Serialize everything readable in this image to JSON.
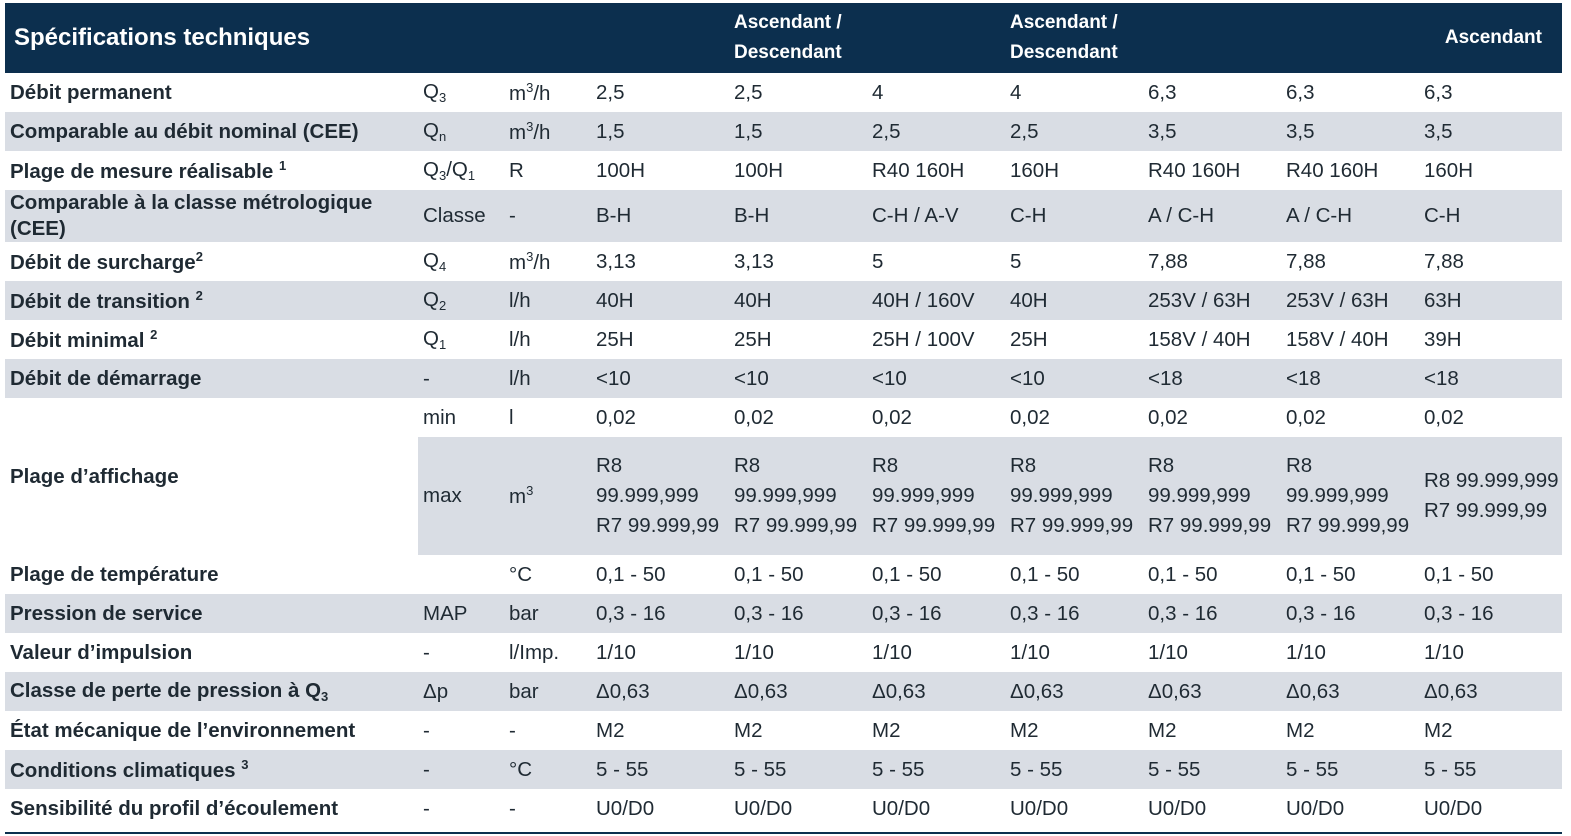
{
  "header": {
    "title": "Spécifications techniques",
    "cols": [
      "",
      "",
      "",
      "Ascendant / Descendant",
      "",
      "Ascendant / Descendant",
      "",
      "",
      "Ascendant"
    ]
  },
  "rows": [
    {
      "label": "Débit permanent",
      "symbol": "Q",
      "symbol_sub": "3",
      "unit": "m",
      "unit_sup": "3",
      "unit_tail": "/h",
      "values": [
        "2,5",
        "2,5",
        "4",
        "4",
        "6,3",
        "6,3",
        "6,3"
      ]
    },
    {
      "label": "Comparable au débit nominal (CEE)",
      "symbol": "Q",
      "symbol_sub": "n",
      "unit": "m",
      "unit_sup": "3",
      "unit_tail": "/h",
      "values": [
        "1,5",
        "1,5",
        "2,5",
        "2,5",
        "3,5",
        "3,5",
        "3,5"
      ]
    },
    {
      "label": "Plage de mesure réalisable",
      "label_sup": "1",
      "symbol": "Q",
      "symbol_sub": "3",
      "symbol_mid": "/Q",
      "symbol_sub2": "1",
      "unit": "R",
      "values": [
        "100H",
        "100H",
        "R40 160H",
        "160H",
        "R40 160H",
        "R40 160H",
        "160H"
      ]
    },
    {
      "label": "Comparable à la classe métrologique (CEE)",
      "symbol": "Classe",
      "unit": "-",
      "values": [
        "B-H",
        "B-H",
        "C-H / A-V",
        "C-H",
        "A / C-H",
        "A / C-H",
        "C-H"
      ]
    },
    {
      "label": "Débit de surcharge",
      "label_sup": "2",
      "symbol": "Q",
      "symbol_sub": "4",
      "unit": "m",
      "unit_sup": "3",
      "unit_tail": "/h",
      "values": [
        "3,13",
        "3,13",
        "5",
        "5",
        "7,88",
        "7,88",
        "7,88"
      ]
    },
    {
      "label": "Débit de transition",
      "label_sup": "2",
      "symbol": "Q",
      "symbol_sub": "2",
      "unit": "l/h",
      "values": [
        "40H",
        "40H",
        "40H / 160V",
        "40H",
        "253V / 63H",
        "253V / 63H",
        "63H"
      ]
    },
    {
      "label": "Débit minimal",
      "label_sup": "2",
      "symbol": "Q",
      "symbol_sub": "1",
      "unit": "l/h",
      "values": [
        "25H",
        "25H",
        "25H / 100V",
        "25H",
        "158V / 40H",
        "158V / 40H",
        "39H"
      ]
    },
    {
      "label": "Débit de démarrage",
      "symbol": "-",
      "unit": "l/h",
      "values": [
        "<10",
        "<10",
        "<10",
        "<10",
        "<18",
        "<18",
        "<18"
      ]
    }
  ],
  "display": {
    "label": "Plage d’affichage",
    "min": {
      "symbol": "min",
      "unit": "l",
      "values": [
        "0,02",
        "0,02",
        "0,02",
        "0,02",
        "0,02",
        "0,02",
        "0,02"
      ]
    },
    "max": {
      "symbol": "max",
      "unit": "m",
      "unit_sup": "3",
      "values": [
        "R8 99.999,999 R7 99.999,99",
        "R8 99.999,999 R7 99.999,99",
        "R8 99.999,999 R7 99.999,99",
        "R8 99.999,999 R7 99.999,99",
        "R8 99.999,999 R7 99.999,99",
        "R8 99.999,999 R7 99.999,99",
        "R8 99.999,999 R7 99.999,99"
      ]
    }
  },
  "rows2": [
    {
      "label": "Plage de température",
      "symbol": "",
      "unit": "°C",
      "values": [
        "0,1 - 50",
        "0,1 - 50",
        "0,1 - 50",
        "0,1 - 50",
        "0,1 - 50",
        "0,1 - 50",
        "0,1 - 50"
      ]
    },
    {
      "label": "Pression de service",
      "symbol": "MAP",
      "unit": "bar",
      "values": [
        "0,3 - 16",
        "0,3 - 16",
        "0,3 - 16",
        "0,3 - 16",
        "0,3 - 16",
        "0,3 - 16",
        "0,3 - 16"
      ]
    },
    {
      "label": "Valeur d’impulsion",
      "symbol": "-",
      "unit": "l/Imp.",
      "values": [
        "1/10",
        "1/10",
        "1/10",
        "1/10",
        "1/10",
        "1/10",
        "1/10"
      ]
    },
    {
      "label": "Classe de perte de pression à Q",
      "label_sub": "3",
      "symbol": "Δp",
      "unit": "bar",
      "values": [
        "Δ0,63",
        "Δ0,63",
        "Δ0,63",
        "Δ0,63",
        "Δ0,63",
        "Δ0,63",
        "Δ0,63"
      ]
    },
    {
      "label": "État mécanique de l’environnement",
      "symbol": "-",
      "unit": "-",
      "values": [
        "M2",
        "M2",
        "M2",
        "M2",
        "M2",
        "M2",
        "M2"
      ]
    },
    {
      "label": "Conditions  climatiques",
      "label_sup": "3",
      "symbol": "-",
      "unit": "°C",
      "values": [
        "5 - 55",
        "5 - 55",
        "5 - 55",
        "5 - 55",
        "5 - 55",
        "5 - 55",
        "5 - 55"
      ]
    },
    {
      "label": "Sensibilité du profil d’écoulement",
      "symbol": "-",
      "unit": "-",
      "values": [
        "U0/D0",
        "U0/D0",
        "U0/D0",
        "U0/D0",
        "U0/D0",
        "U0/D0",
        "U0/D0"
      ]
    }
  ]
}
